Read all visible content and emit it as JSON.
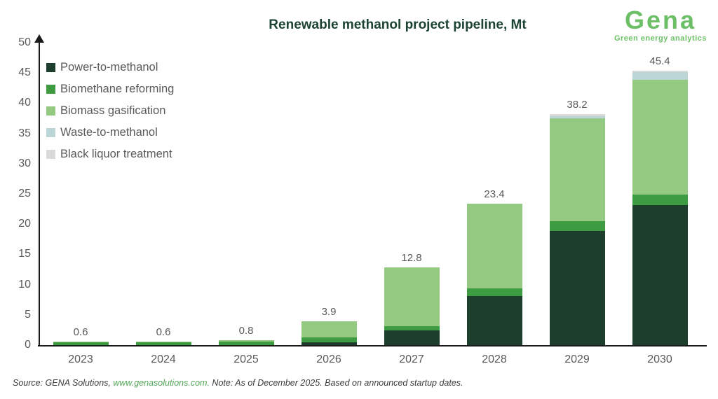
{
  "title": "Renewable methanol project pipeline, Mt",
  "logo": {
    "name": "Gena",
    "tagline": "Green energy analytics"
  },
  "colors": {
    "title_green": "#1C4332",
    "logo_green": "#6DBF67",
    "axis": "#1a1a1a",
    "label_gray": "#595959",
    "source_text": "#3C3C3C",
    "source_link_green": "#53A758"
  },
  "source": {
    "prefix": "Source: GENA Solutions, ",
    "link": "www.genasolutions.com.",
    "suffix": " Note: As of December 2025. Based on announced startup dates."
  },
  "chart_data": {
    "type": "bar",
    "stacked": true,
    "title": "Renewable methanol project pipeline, Mt",
    "xlabel": "",
    "ylabel": "",
    "ylim": [
      0,
      50
    ],
    "y_ticks": [
      0,
      5,
      10,
      15,
      20,
      25,
      30,
      35,
      40,
      45,
      50
    ],
    "grid": false,
    "legend_position": "top-left",
    "categories": [
      "2023",
      "2024",
      "2025",
      "2026",
      "2027",
      "2028",
      "2029",
      "2030"
    ],
    "series": [
      {
        "name": "Power-to-methanol",
        "color": "#1E3E2D",
        "values": [
          0,
          0,
          0,
          0.5,
          2.4,
          8.1,
          18.9,
          23.2
        ]
      },
      {
        "name": "Biomethane reforming",
        "color": "#3D9C41",
        "values": [
          0.5,
          0.5,
          0.6,
          0.8,
          0.7,
          1.3,
          1.6,
          1.7
        ]
      },
      {
        "name": "Biomass gasification",
        "color": "#93C981",
        "values": [
          0.1,
          0.1,
          0.2,
          2.6,
          9.7,
          14.0,
          17.0,
          19.0
        ]
      },
      {
        "name": "Waste-to-methanol",
        "color": "#BCD5D6",
        "values": [
          0,
          0,
          0,
          0,
          0,
          0,
          0.4,
          1.2
        ]
      },
      {
        "name": "Black liquor treatment",
        "color": "#D9D9D9",
        "values": [
          0,
          0,
          0,
          0,
          0,
          0,
          0.3,
          0.3
        ]
      }
    ],
    "totals": [
      0.6,
      0.6,
      0.8,
      3.9,
      12.8,
      23.4,
      38.2,
      45.4
    ],
    "total_labels": [
      "0.6",
      "0.6",
      "0.8",
      "3.9",
      "12.8",
      "23.4",
      "38.2",
      "45.4"
    ]
  }
}
